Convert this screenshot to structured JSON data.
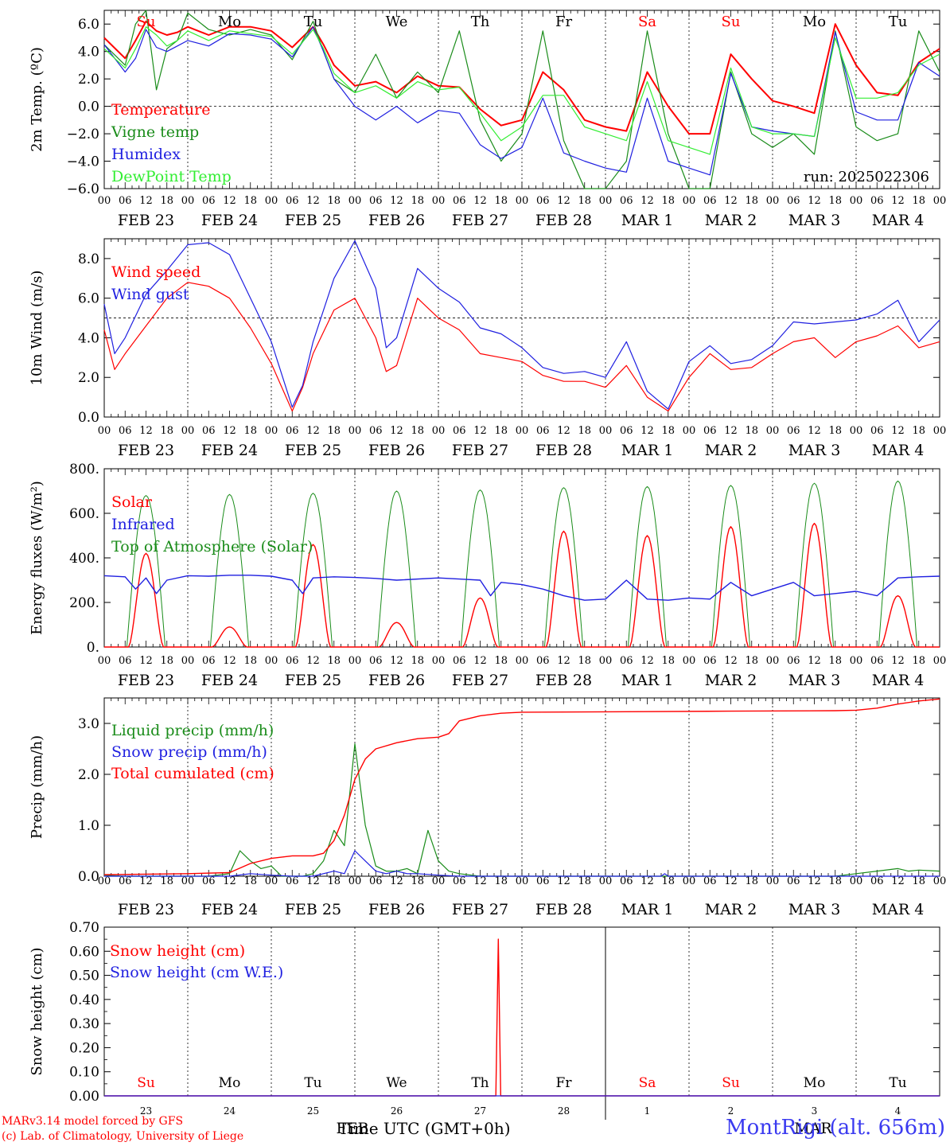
{
  "days": [
    {
      "date": "FEB 23",
      "dow": "Su",
      "dom": "23",
      "weekend": true
    },
    {
      "date": "FEB 24",
      "dow": "Mo",
      "dom": "24",
      "weekend": false
    },
    {
      "date": "FEB 25",
      "dow": "Tu",
      "dom": "25",
      "weekend": false
    },
    {
      "date": "FEB 26",
      "dow": "We",
      "dom": "26",
      "weekend": false
    },
    {
      "date": "FEB 27",
      "dow": "Th",
      "dom": "27",
      "weekend": false
    },
    {
      "date": "FEB 28",
      "dow": "Fr",
      "dom": "28",
      "weekend": false
    },
    {
      "date": "MAR  1",
      "dow": "Sa",
      "dom": "1",
      "weekend": true
    },
    {
      "date": "MAR  2",
      "dow": "Su",
      "dom": "2",
      "weekend": true
    },
    {
      "date": "MAR  3",
      "dow": "Mo",
      "dom": "3",
      "weekend": false
    },
    {
      "date": "MAR  4",
      "dow": "Tu",
      "dom": "4",
      "weekend": false
    }
  ],
  "hour_ticks": [
    "00",
    "06",
    "12",
    "18"
  ],
  "last_tick": "00",
  "bottom_month_left": "FEB",
  "bottom_month_right": "MAR",
  "x_title": "Time UTC (GMT+0h)",
  "credit_line1": "MARv3.14 model forced by GFS",
  "credit_line2": "(c) Lab. of Climatology, University of Liege",
  "station": "MontRigi (alt. 656m)",
  "colors": {
    "red": "#ff0000",
    "green": "#1a8c1a",
    "blue": "#1f1fe0",
    "lightgreen": "#33ee33",
    "weekend": "#ff0000"
  },
  "chart_data": [
    {
      "type": "line",
      "ylabel": "2m Temp. (ºC)",
      "ylim": [
        -6,
        7
      ],
      "yticks": [
        "6.0",
        "4.0",
        "2.0",
        "0.0",
        "−2.0",
        "−4.0",
        "−6.0"
      ],
      "ytick_values": [
        6,
        4,
        2,
        0,
        -2,
        -4,
        -6
      ],
      "refline": 0,
      "annotation": "run: 2025022306",
      "x_unit": "hours since FEB 23 00 UTC",
      "series": [
        {
          "name": "Temperature",
          "color": "red",
          "width": 2,
          "x": [
            0,
            6,
            9,
            12,
            15,
            18,
            21,
            24,
            30,
            36,
            42,
            48,
            54,
            60,
            63,
            66,
            72,
            78,
            84,
            90,
            96,
            102,
            108,
            114,
            120,
            126,
            132,
            138,
            144,
            150,
            156,
            162,
            168,
            174,
            180,
            186,
            192,
            198,
            204,
            210,
            216,
            222,
            228,
            234,
            240
          ],
          "y": [
            5.0,
            3.5,
            4.8,
            6.2,
            5.5,
            5.2,
            5.4,
            5.8,
            5.2,
            5.8,
            5.8,
            5.5,
            4.3,
            5.8,
            4.5,
            3.0,
            1.5,
            1.8,
            1.0,
            2.2,
            1.5,
            1.4,
            -0.2,
            -1.4,
            -1.0,
            2.5,
            1.2,
            -1.0,
            -1.5,
            -1.8,
            2.5,
            0.0,
            -2.0,
            -2.0,
            3.8,
            2.0,
            0.4,
            0.0,
            -0.5,
            6.0,
            3.0,
            1.0,
            0.8,
            3.2,
            4.2
          ]
        },
        {
          "name": "Vigne temp",
          "color": "green",
          "width": 1.2,
          "x": [
            0,
            6,
            9,
            12,
            15,
            18,
            21,
            24,
            30,
            36,
            42,
            48,
            54,
            60,
            63,
            66,
            72,
            78,
            84,
            90,
            96,
            102,
            108,
            114,
            120,
            126,
            132,
            138,
            144,
            150,
            156,
            162,
            168,
            174,
            180,
            186,
            192,
            198,
            204,
            210,
            216,
            222,
            228,
            234,
            240
          ],
          "y": [
            4.5,
            3.0,
            6.0,
            7.0,
            1.2,
            4.2,
            4.8,
            6.8,
            5.6,
            5.2,
            5.6,
            5.2,
            3.4,
            6.2,
            4.0,
            2.0,
            1.0,
            3.8,
            0.6,
            2.5,
            1.0,
            5.5,
            -1.0,
            -4.0,
            -2.0,
            5.5,
            -2.5,
            -6.0,
            -6.0,
            -4.0,
            5.5,
            -2.0,
            -6.0,
            -6.0,
            2.5,
            -2.0,
            -3.0,
            -2.0,
            -3.5,
            5.5,
            -1.5,
            -2.5,
            -2.0,
            5.5,
            2.5
          ]
        },
        {
          "name": "Humidex",
          "color": "blue",
          "width": 1.2,
          "x": [
            0,
            6,
            9,
            12,
            15,
            18,
            21,
            24,
            30,
            36,
            42,
            48,
            54,
            60,
            63,
            66,
            72,
            78,
            84,
            90,
            96,
            102,
            108,
            114,
            120,
            126,
            132,
            138,
            144,
            150,
            156,
            162,
            168,
            174,
            180,
            186,
            192,
            198,
            204,
            210,
            216,
            222,
            228,
            234,
            240
          ],
          "y": [
            4.5,
            2.5,
            3.5,
            5.6,
            4.3,
            4.0,
            4.4,
            4.8,
            4.4,
            5.3,
            5.2,
            4.9,
            3.6,
            5.8,
            4.0,
            2.0,
            0.0,
            -1.0,
            0.0,
            -1.2,
            -0.3,
            -0.5,
            -2.8,
            -3.8,
            -3.0,
            0.6,
            -3.4,
            -4.0,
            -4.5,
            -4.8,
            0.6,
            -4.0,
            -4.5,
            -5.0,
            2.4,
            -1.5,
            -1.8,
            -2.0,
            -2.2,
            5.4,
            -0.4,
            -1.0,
            -1.0,
            3.2,
            2.2
          ]
        },
        {
          "name": "DewPoint Temp",
          "color": "lightgreen",
          "width": 1.2,
          "x": [
            0,
            6,
            9,
            12,
            15,
            18,
            21,
            24,
            30,
            36,
            42,
            48,
            54,
            60,
            63,
            66,
            72,
            78,
            84,
            90,
            96,
            102,
            108,
            114,
            120,
            126,
            132,
            138,
            144,
            150,
            156,
            162,
            168,
            174,
            180,
            186,
            192,
            198,
            204,
            210,
            216,
            222,
            228,
            234,
            240
          ],
          "y": [
            4.2,
            2.8,
            4.2,
            5.8,
            5.2,
            4.4,
            4.8,
            5.5,
            4.8,
            5.5,
            5.3,
            5.1,
            3.8,
            5.6,
            4.2,
            2.4,
            1.0,
            1.5,
            0.6,
            1.8,
            1.2,
            1.4,
            -0.5,
            -2.5,
            -1.5,
            0.8,
            0.8,
            -1.5,
            -2.0,
            -2.5,
            1.8,
            -2.5,
            -3.0,
            -3.5,
            2.8,
            -1.5,
            -2.0,
            -2.0,
            -2.2,
            5.0,
            0.6,
            0.6,
            1.0,
            3.0,
            3.8
          ]
        }
      ]
    },
    {
      "type": "line",
      "ylabel": "10m Wind (m/s)",
      "ylim": [
        0,
        9
      ],
      "yticks": [
        "8.0",
        "6.0",
        "4.0",
        "2.0",
        "0.0"
      ],
      "ytick_values": [
        8,
        6,
        4,
        2,
        0
      ],
      "refline": 5,
      "x_unit": "hours since FEB 23 00 UTC",
      "series": [
        {
          "name": "Wind speed",
          "color": "red",
          "width": 1.2,
          "x": [
            0,
            3,
            6,
            12,
            18,
            24,
            30,
            36,
            42,
            48,
            54,
            57,
            60,
            66,
            72,
            78,
            81,
            84,
            90,
            96,
            102,
            108,
            114,
            120,
            126,
            132,
            138,
            144,
            150,
            156,
            162,
            168,
            174,
            180,
            186,
            192,
            198,
            204,
            210,
            216,
            222,
            228,
            234,
            240
          ],
          "y": [
            4.4,
            2.4,
            3.2,
            4.6,
            6.0,
            6.8,
            6.6,
            6.0,
            4.5,
            2.7,
            0.3,
            1.5,
            3.2,
            5.4,
            6.0,
            4.0,
            2.3,
            2.6,
            6.0,
            5.0,
            4.4,
            3.2,
            3.0,
            2.8,
            2.1,
            1.8,
            1.8,
            1.5,
            2.6,
            1.0,
            0.3,
            2.0,
            3.2,
            2.4,
            2.5,
            3.2,
            3.8,
            4.0,
            3.0,
            3.8,
            4.1,
            4.6,
            3.5,
            3.8
          ]
        },
        {
          "name": "Wind gust",
          "color": "blue",
          "width": 1.2,
          "x": [
            0,
            3,
            6,
            12,
            18,
            24,
            30,
            36,
            42,
            48,
            54,
            57,
            60,
            66,
            72,
            78,
            81,
            84,
            90,
            96,
            102,
            108,
            114,
            120,
            126,
            132,
            138,
            144,
            150,
            156,
            162,
            168,
            174,
            180,
            186,
            192,
            198,
            204,
            210,
            216,
            222,
            228,
            234,
            240
          ],
          "y": [
            5.7,
            3.2,
            4.0,
            6.2,
            7.4,
            8.7,
            8.8,
            8.2,
            6.0,
            3.8,
            0.5,
            1.6,
            3.8,
            7.0,
            8.9,
            6.5,
            3.5,
            4.0,
            7.5,
            6.5,
            5.8,
            4.5,
            4.2,
            3.5,
            2.5,
            2.2,
            2.3,
            2.0,
            3.8,
            1.3,
            0.4,
            2.8,
            3.6,
            2.7,
            2.9,
            3.6,
            4.8,
            4.7,
            4.8,
            4.9,
            5.2,
            5.9,
            3.8,
            4.9
          ]
        }
      ]
    },
    {
      "type": "line",
      "ylabel": "Energy fluxes (W/m²)",
      "ylim": [
        0,
        800
      ],
      "yticks": [
        "800.",
        "600.",
        "400.",
        "200.",
        "0."
      ],
      "ytick_values": [
        800,
        600,
        400,
        200,
        0
      ],
      "x_unit": "hours since FEB 23 00 UTC",
      "solar_peaks": [
        420,
        90,
        460,
        110,
        220,
        520,
        500,
        540,
        555,
        230
      ],
      "toa_peaks": [
        680,
        685,
        690,
        700,
        705,
        715,
        720,
        725,
        735,
        745
      ],
      "infrared": {
        "x": [
          0,
          6,
          9,
          12,
          15,
          18,
          24,
          30,
          36,
          42,
          48,
          54,
          57,
          60,
          66,
          72,
          78,
          84,
          96,
          102,
          108,
          111,
          114,
          120,
          126,
          132,
          138,
          144,
          150,
          156,
          162,
          168,
          174,
          180,
          186,
          192,
          198,
          204,
          210,
          216,
          222,
          228,
          234,
          240
        ],
        "y": [
          320,
          315,
          260,
          310,
          240,
          300,
          320,
          318,
          322,
          322,
          318,
          300,
          240,
          310,
          315,
          312,
          308,
          300,
          310,
          305,
          300,
          230,
          290,
          280,
          260,
          230,
          210,
          215,
          300,
          215,
          210,
          220,
          215,
          290,
          230,
          260,
          290,
          230,
          240,
          250,
          230,
          310,
          315,
          318
        ]
      },
      "series": [
        {
          "name": "Solar",
          "color": "red"
        },
        {
          "name": "Infrared",
          "color": "blue"
        },
        {
          "name": "Top of Atmosphere (Solar)",
          "color": "green"
        }
      ]
    },
    {
      "type": "line",
      "ylabel": "Precip (mm/h)",
      "ylim": [
        0,
        3.5
      ],
      "yticks": [
        "3.0",
        "2.0",
        "1.0",
        "0.0"
      ],
      "ytick_values": [
        3,
        2,
        1,
        0
      ],
      "x_unit": "hours since FEB 23 00 UTC",
      "series": [
        {
          "name": "Liquid precip (mm/h)",
          "color": "green",
          "width": 1.2,
          "x": [
            0,
            6,
            12,
            18,
            24,
            30,
            36,
            39,
            42,
            45,
            48,
            51,
            54,
            57,
            60,
            63,
            66,
            69,
            72,
            75,
            78,
            81,
            84,
            87,
            90,
            93,
            96,
            99,
            102,
            108,
            120,
            150,
            180,
            210,
            216,
            222,
            228,
            231,
            234,
            240
          ],
          "y": [
            0.02,
            0,
            0,
            0,
            0,
            0,
            0.05,
            0.5,
            0.3,
            0.15,
            0.2,
            0,
            0,
            0,
            0.05,
            0.3,
            0.9,
            0.6,
            2.6,
            1.0,
            0.2,
            0.1,
            0.1,
            0.15,
            0.05,
            0.9,
            0.3,
            0.1,
            0.05,
            0,
            0,
            0,
            0,
            0,
            0.05,
            0.1,
            0.15,
            0.1,
            0.12,
            0.1
          ]
        },
        {
          "name": "Snow precip (mm/h)",
          "color": "blue",
          "width": 1.2,
          "x": [
            0,
            36,
            42,
            48,
            54,
            60,
            66,
            69,
            72,
            75,
            78,
            81,
            84,
            87,
            90,
            96,
            102,
            108,
            120,
            160,
            161,
            162,
            180,
            240
          ],
          "y": [
            0,
            0,
            0.05,
            0.02,
            0,
            0,
            0.1,
            0.05,
            0.5,
            0.3,
            0.1,
            0.05,
            0.1,
            0.05,
            0.05,
            0.02,
            0,
            0,
            0,
            0,
            0.05,
            0,
            0,
            0
          ]
        },
        {
          "name": "Total cumulated (cm)",
          "color": "red",
          "width": 1.4,
          "x": [
            0,
            24,
            36,
            42,
            48,
            54,
            60,
            63,
            66,
            69,
            72,
            75,
            78,
            84,
            90,
            96,
            99,
            102,
            108,
            114,
            120,
            150,
            180,
            210,
            216,
            222,
            228,
            234,
            240
          ],
          "y": [
            0.03,
            0.05,
            0.07,
            0.25,
            0.35,
            0.4,
            0.4,
            0.45,
            0.7,
            1.2,
            1.9,
            2.3,
            2.5,
            2.62,
            2.7,
            2.73,
            2.8,
            3.05,
            3.15,
            3.2,
            3.22,
            3.23,
            3.24,
            3.25,
            3.26,
            3.3,
            3.38,
            3.44,
            3.48
          ]
        }
      ]
    },
    {
      "type": "line",
      "ylabel": "Snow height (cm)",
      "ylim": [
        0,
        0.7
      ],
      "yticks": [
        "0.70",
        "0.60",
        "0.50",
        "0.40",
        "0.30",
        "0.20",
        "0.10",
        "0.00"
      ],
      "ytick_values": [
        0.7,
        0.6,
        0.5,
        0.4,
        0.3,
        0.2,
        0.1,
        0.0
      ],
      "x_unit": "hours since FEB 23 00 UTC",
      "series": [
        {
          "name": "Snow height (cm)",
          "color": "red",
          "width": 1.4,
          "x": [
            0,
            112.5,
            113.2,
            113.9,
            240
          ],
          "y": [
            0,
            0,
            0.65,
            0,
            0
          ]
        },
        {
          "name": "Snow height (cm W.E.)",
          "color": "blue",
          "width": 1.2,
          "x": [
            0,
            240
          ],
          "y": [
            0,
            0
          ]
        }
      ]
    }
  ]
}
